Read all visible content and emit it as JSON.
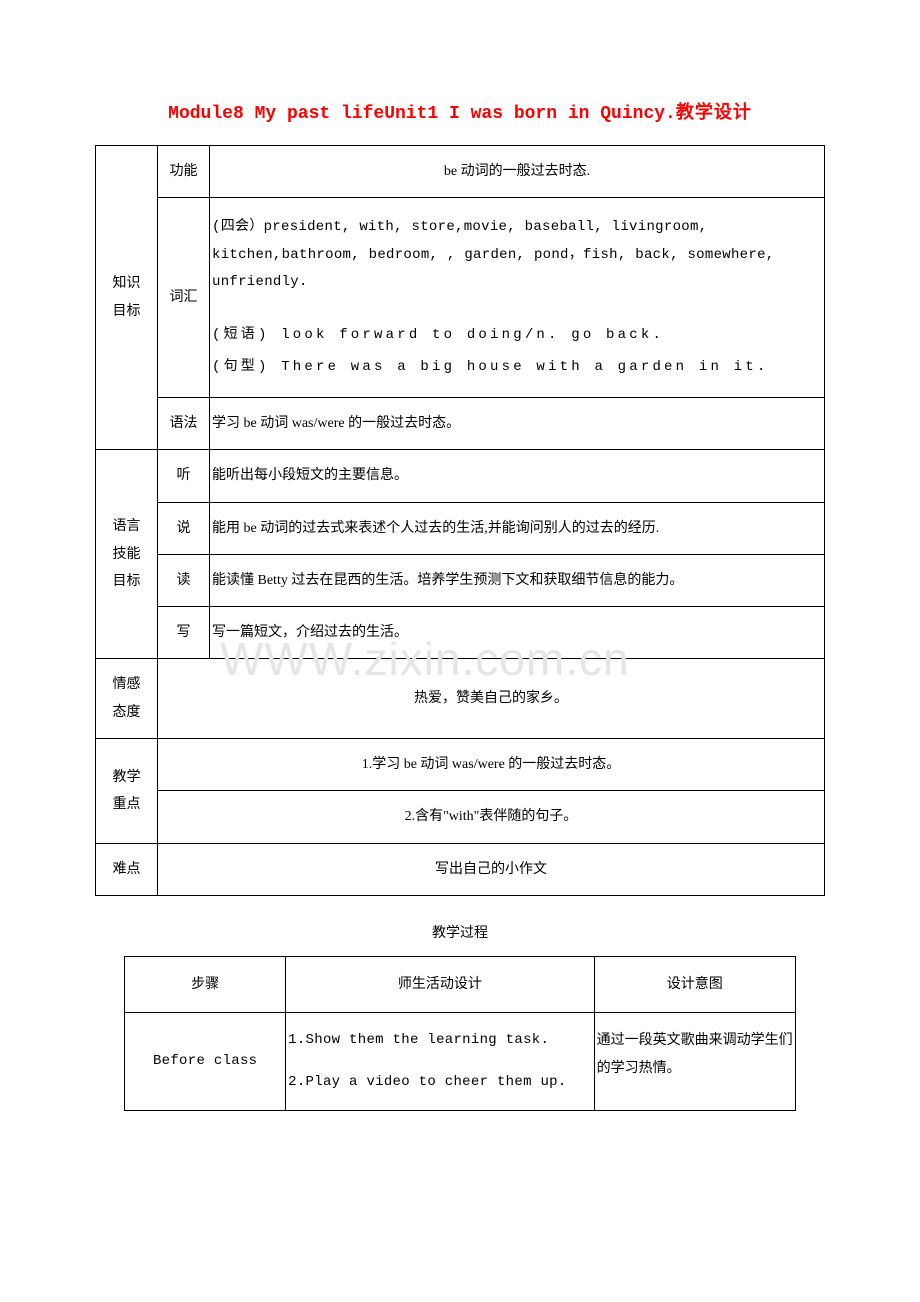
{
  "title": {
    "part1": "Module8   My past lifeUnit1    I was born in Quincy.",
    "part2": "教学设计"
  },
  "watermark": "WWW.zixin.com.cn",
  "table1": {
    "knowledge_label": "知识<br>目标",
    "function": {
      "label": "功能",
      "content": "be 动词的一般过去时态."
    },
    "vocab": {
      "label": "词汇",
      "line1": "(四会）president, with, store,movie, baseball, livingroom, kitchen,bathroom, bedroom, , garden, pond，fish, back, somewhere, unfriendly.",
      "line2": "(短语) look forward to doing/n. go back.",
      "line3": "(句型) There was a big house with a garden in it."
    },
    "grammar": {
      "label": "语法",
      "content": "学习 be 动词 was/were 的一般过去时态。"
    },
    "skill_label": "语言<br>技能<br>目标",
    "listen": {
      "label": "听",
      "content": "能听出每小段短文的主要信息。"
    },
    "speak": {
      "label": "说",
      "content": "能用 be 动词的过去式来表述个人过去的生活,并能询问别人的过去的经历."
    },
    "read": {
      "label": "读",
      "content": "能读懂 Betty 过去在昆西的生活。培养学生预测下文和获取细节信息的能力。"
    },
    "write": {
      "label": "写",
      "content": "写一篇短文，介绍过去的生活。"
    },
    "emotion": {
      "label": "情感<br>态度",
      "content": "热爱，赞美自己的家乡。"
    },
    "keypoint": {
      "label": "教学<br>重点",
      "line1": "1.学习 be 动词 was/were 的一般过去时态。",
      "line2": "2.含有\"with\"表伴随的句子。"
    },
    "difficulty": {
      "label": "难点",
      "content": "写出自己的小作文"
    }
  },
  "process_title": "教学过程",
  "table2": {
    "headers": {
      "step": "步骤",
      "activity": "师生活动设计",
      "intent": "设计意图"
    },
    "row1": {
      "step": "Before class",
      "act1": "1.Show them the learning task.",
      "act2": "2.Play a video to cheer them up.",
      "intent": "通过一段英文歌曲来调动学生们的学习热情。"
    }
  },
  "colors": {
    "title": "#ff0000",
    "text": "#000000",
    "border": "#000000",
    "background": "#ffffff",
    "watermark": "#e5e5e5"
  }
}
